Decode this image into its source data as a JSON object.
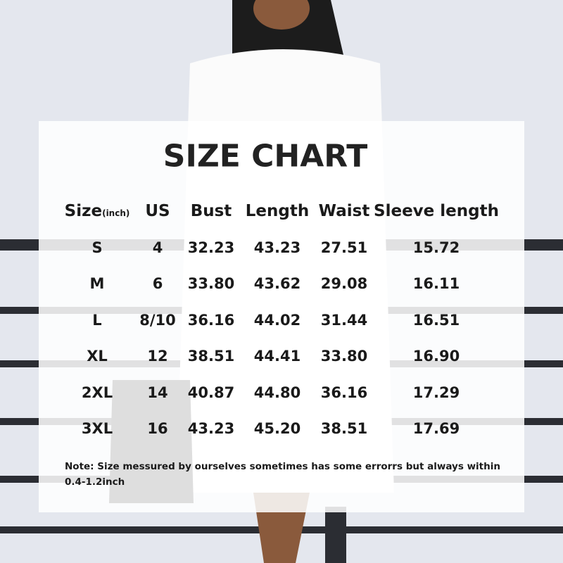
{
  "title": "SIZE CHART",
  "header": {
    "size_label": "Size",
    "size_unit": "(inch)",
    "columns": [
      "US",
      "Bust",
      "Length",
      "Waist",
      "Sleeve length"
    ]
  },
  "table": {
    "rows": [
      [
        "S",
        "4",
        "32.23",
        "43.23",
        "27.51",
        "15.72"
      ],
      [
        "M",
        "6",
        "33.80",
        "43.62",
        "29.08",
        "16.11"
      ],
      [
        "L",
        "8/10",
        "36.16",
        "44.02",
        "31.44",
        "16.51"
      ],
      [
        "XL",
        "12",
        "38.51",
        "44.41",
        "33.80",
        "16.90"
      ],
      [
        "2XL",
        "14",
        "40.87",
        "44.80",
        "36.16",
        "17.29"
      ],
      [
        "3XL",
        "16",
        "43.23",
        "45.20",
        "38.51",
        "17.69"
      ]
    ]
  },
  "note": "Note:  Size messured by ourselves sometimes has some errorrs but always within 0.4-1.2inch"
}
